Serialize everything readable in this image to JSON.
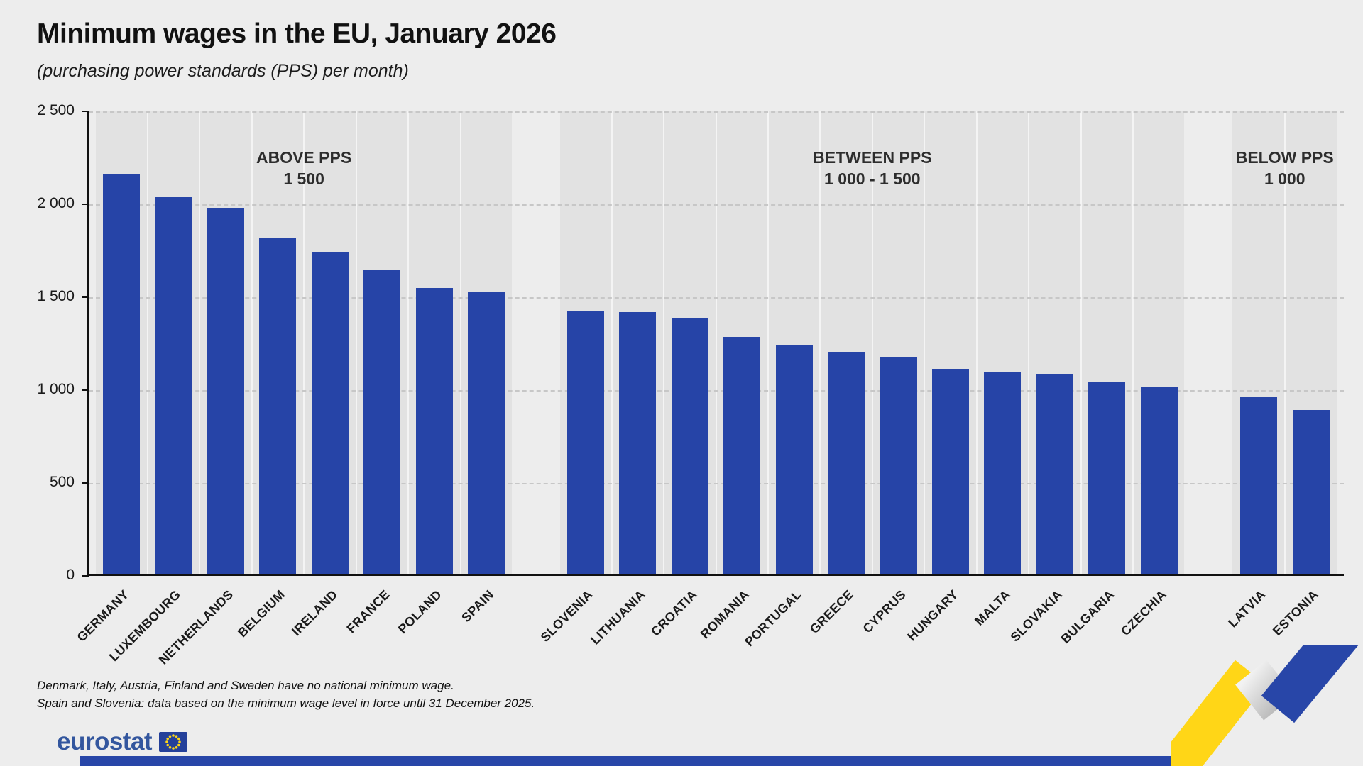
{
  "page": {
    "title": "Minimum wages in the EU, January 2026",
    "subtitle": "(purchasing power standards (PPS) per month)",
    "footnote_1": "Denmark, Italy, Austria, Finland and Sweden have no national minimum wage.",
    "footnote_2": "Spain and Slovenia: data based on the minimum wage level in force until 31 December 2025.",
    "logo_text": "eurostat"
  },
  "colors": {
    "bar_blue": "#2644a7",
    "background": "#ededed",
    "panel_gray": "#e2e2e2",
    "accent_yellow": "#ffd617",
    "logo_blue": "#33569e",
    "bottom_bar_blue": "#2846a8"
  },
  "chart_data": {
    "type": "bar",
    "title": "Minimum wages in the EU, January 2026",
    "subtitle": "(purchasing power standards (PPS) per month)",
    "xlabel": "",
    "ylabel": "",
    "ylim": [
      0,
      2500
    ],
    "yticks": [
      0,
      500,
      1000,
      1500,
      2000,
      2500
    ],
    "ytick_labels": [
      "0",
      "500",
      "1 000",
      "1 500",
      "2 000",
      "2 500"
    ],
    "grid": "horizontal dashed",
    "legend": "none",
    "groups": [
      {
        "label_line1": "ABOVE PPS",
        "label_line2": "1 500",
        "categories": [
          "GERMANY",
          "LUXEMBOURG",
          "NETHERLANDS",
          "BELGIUM",
          "IRELAND",
          "FRANCE",
          "POLAND",
          "SPAIN"
        ],
        "values": [
          2160,
          2040,
          1980,
          1820,
          1740,
          1645,
          1550,
          1525
        ]
      },
      {
        "label_line1": "BETWEEN PPS",
        "label_line2": "1 000 - 1 500",
        "categories": [
          "SLOVENIA",
          "LITHUANIA",
          "CROATIA",
          "ROMANIA",
          "PORTUGAL",
          "GREECE",
          "CYPRUS",
          "HUNGARY",
          "MALTA",
          "SLOVAKIA",
          "BULGARIA",
          "CZECHIA"
        ],
        "values": [
          1425,
          1420,
          1385,
          1285,
          1240,
          1205,
          1180,
          1115,
          1095,
          1085,
          1045,
          1015
        ]
      },
      {
        "label_line1": "BELOW PPS",
        "label_line2": "1 000",
        "categories": [
          "LATVIA",
          "ESTONIA"
        ],
        "values": [
          960,
          895
        ]
      }
    ]
  }
}
